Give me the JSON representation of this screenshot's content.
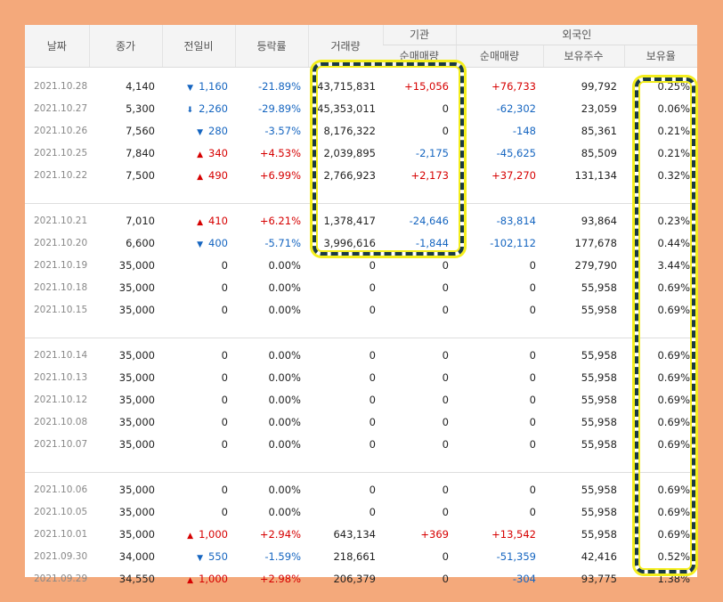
{
  "headers": {
    "date": "날짜",
    "close": "종가",
    "diff": "전일비",
    "rate": "등락률",
    "volume": "거래량",
    "institution": "기관",
    "foreign": "외국인",
    "inst_net": "순매매량",
    "foreign_net": "순매매량",
    "foreign_hold": "보유주수",
    "foreign_ratio": "보유율"
  },
  "groups": [
    [
      {
        "date": "2021.10.28",
        "close": "4,140",
        "dir": "down",
        "icon": "triangle-down-icon",
        "diff": "1,160",
        "rate": "-21.89%",
        "volume": "43,715,831",
        "inst": "+15,056",
        "fnet": "+76,733",
        "hold": "99,792",
        "ratio": "0.25%"
      },
      {
        "date": "2021.10.27",
        "close": "5,300",
        "dir": "down",
        "icon": "arrow-down-icon",
        "diff": "2,260",
        "rate": "-29.89%",
        "volume": "45,353,011",
        "inst": "0",
        "fnet": "-62,302",
        "hold": "23,059",
        "ratio": "0.06%"
      },
      {
        "date": "2021.10.26",
        "close": "7,560",
        "dir": "down",
        "icon": "triangle-down-icon",
        "diff": "280",
        "rate": "-3.57%",
        "volume": "8,176,322",
        "inst": "0",
        "fnet": "-148",
        "hold": "85,361",
        "ratio": "0.21%"
      },
      {
        "date": "2021.10.25",
        "close": "7,840",
        "dir": "up",
        "icon": "triangle-up-icon",
        "diff": "340",
        "rate": "+4.53%",
        "volume": "2,039,895",
        "inst": "-2,175",
        "fnet": "-45,625",
        "hold": "85,509",
        "ratio": "0.21%"
      },
      {
        "date": "2021.10.22",
        "close": "7,500",
        "dir": "up",
        "icon": "triangle-up-icon",
        "diff": "490",
        "rate": "+6.99%",
        "volume": "2,766,923",
        "inst": "+2,173",
        "fnet": "+37,270",
        "hold": "131,134",
        "ratio": "0.32%"
      }
    ],
    [
      {
        "date": "2021.10.21",
        "close": "7,010",
        "dir": "up",
        "icon": "triangle-up-icon",
        "diff": "410",
        "rate": "+6.21%",
        "volume": "1,378,417",
        "inst": "-24,646",
        "fnet": "-83,814",
        "hold": "93,864",
        "ratio": "0.23%"
      },
      {
        "date": "2021.10.20",
        "close": "6,600",
        "dir": "down",
        "icon": "triangle-down-icon",
        "diff": "400",
        "rate": "-5.71%",
        "volume": "3,996,616",
        "inst": "-1,844",
        "fnet": "-102,112",
        "hold": "177,678",
        "ratio": "0.44%"
      },
      {
        "date": "2021.10.19",
        "close": "35,000",
        "dir": "none",
        "icon": "",
        "diff": "0",
        "rate": "0.00%",
        "volume": "0",
        "inst": "0",
        "fnet": "0",
        "hold": "279,790",
        "ratio": "3.44%"
      },
      {
        "date": "2021.10.18",
        "close": "35,000",
        "dir": "none",
        "icon": "",
        "diff": "0",
        "rate": "0.00%",
        "volume": "0",
        "inst": "0",
        "fnet": "0",
        "hold": "55,958",
        "ratio": "0.69%"
      },
      {
        "date": "2021.10.15",
        "close": "35,000",
        "dir": "none",
        "icon": "",
        "diff": "0",
        "rate": "0.00%",
        "volume": "0",
        "inst": "0",
        "fnet": "0",
        "hold": "55,958",
        "ratio": "0.69%"
      }
    ],
    [
      {
        "date": "2021.10.14",
        "close": "35,000",
        "dir": "none",
        "icon": "",
        "diff": "0",
        "rate": "0.00%",
        "volume": "0",
        "inst": "0",
        "fnet": "0",
        "hold": "55,958",
        "ratio": "0.69%"
      },
      {
        "date": "2021.10.13",
        "close": "35,000",
        "dir": "none",
        "icon": "",
        "diff": "0",
        "rate": "0.00%",
        "volume": "0",
        "inst": "0",
        "fnet": "0",
        "hold": "55,958",
        "ratio": "0.69%"
      },
      {
        "date": "2021.10.12",
        "close": "35,000",
        "dir": "none",
        "icon": "",
        "diff": "0",
        "rate": "0.00%",
        "volume": "0",
        "inst": "0",
        "fnet": "0",
        "hold": "55,958",
        "ratio": "0.69%"
      },
      {
        "date": "2021.10.08",
        "close": "35,000",
        "dir": "none",
        "icon": "",
        "diff": "0",
        "rate": "0.00%",
        "volume": "0",
        "inst": "0",
        "fnet": "0",
        "hold": "55,958",
        "ratio": "0.69%"
      },
      {
        "date": "2021.10.07",
        "close": "35,000",
        "dir": "none",
        "icon": "",
        "diff": "0",
        "rate": "0.00%",
        "volume": "0",
        "inst": "0",
        "fnet": "0",
        "hold": "55,958",
        "ratio": "0.69%"
      }
    ],
    [
      {
        "date": "2021.10.06",
        "close": "35,000",
        "dir": "none",
        "icon": "",
        "diff": "0",
        "rate": "0.00%",
        "volume": "0",
        "inst": "0",
        "fnet": "0",
        "hold": "55,958",
        "ratio": "0.69%"
      },
      {
        "date": "2021.10.05",
        "close": "35,000",
        "dir": "none",
        "icon": "",
        "diff": "0",
        "rate": "0.00%",
        "volume": "0",
        "inst": "0",
        "fnet": "0",
        "hold": "55,958",
        "ratio": "0.69%"
      },
      {
        "date": "2021.10.01",
        "close": "35,000",
        "dir": "up",
        "icon": "triangle-up-icon",
        "diff": "1,000",
        "rate": "+2.94%",
        "volume": "643,134",
        "inst": "+369",
        "fnet": "+13,542",
        "hold": "55,958",
        "ratio": "0.69%"
      },
      {
        "date": "2021.09.30",
        "close": "34,000",
        "dir": "down",
        "icon": "triangle-down-icon",
        "diff": "550",
        "rate": "-1.59%",
        "volume": "218,661",
        "inst": "0",
        "fnet": "-51,359",
        "hold": "42,416",
        "ratio": "0.52%"
      },
      {
        "date": "2021.09.29",
        "close": "34,550",
        "dir": "up",
        "icon": "triangle-up-icon",
        "diff": "1,000",
        "rate": "+2.98%",
        "volume": "206,379",
        "inst": "0",
        "fnet": "-304",
        "hold": "93,775",
        "ratio": "1.38%"
      }
    ]
  ],
  "colors": {
    "frame": "#f4a97b",
    "up": "#d60000",
    "down": "#1565c0",
    "highlight_border": "#1a3a45",
    "highlight_glow": "#f4ee1c"
  }
}
